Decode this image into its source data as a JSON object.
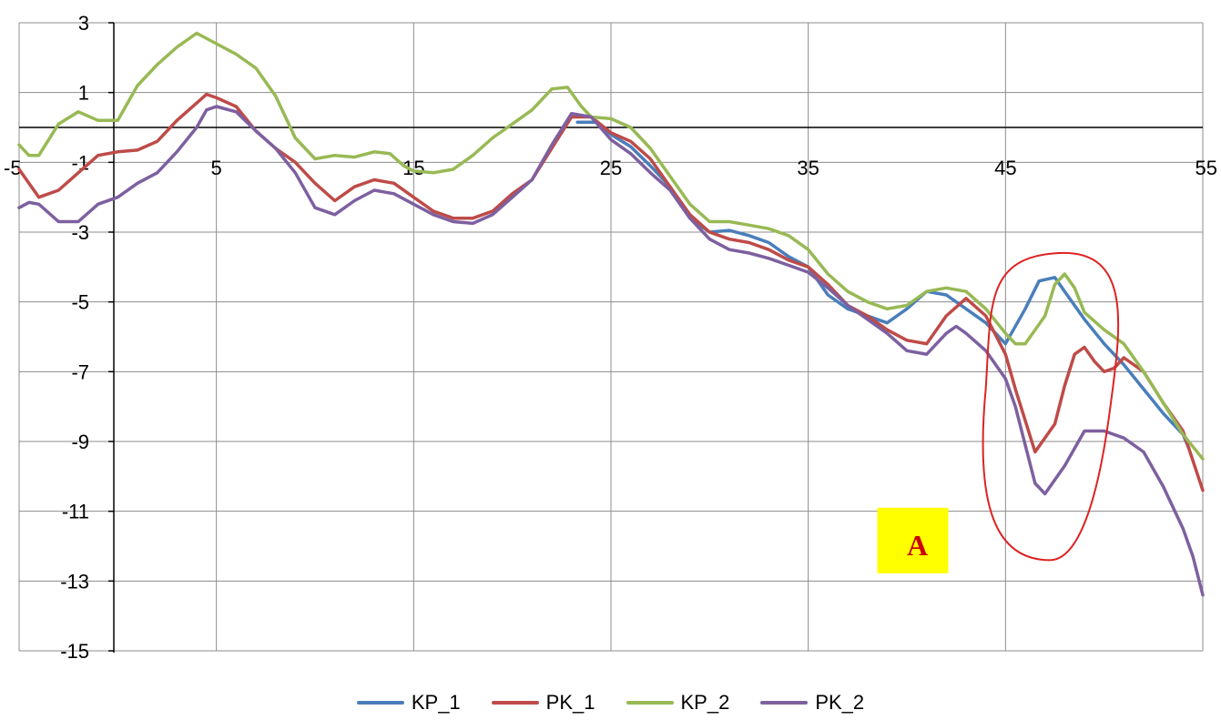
{
  "chart_data": {
    "type": "line",
    "title": "",
    "xlabel": "",
    "ylabel": "",
    "xlim": [
      -5,
      55
    ],
    "ylim": [
      -15,
      3
    ],
    "x_ticks": [
      -5,
      5,
      15,
      25,
      35,
      45,
      55
    ],
    "x_tick_labels": [
      "-5",
      "5",
      "15",
      "25",
      "35",
      "45",
      "55"
    ],
    "y_ticks": [
      3,
      1,
      -1,
      -3,
      -5,
      -7,
      -9,
      -11,
      -13,
      -15
    ],
    "y_tick_labels": [
      "3",
      "1",
      "-1",
      "-3",
      "-5",
      "-7",
      "-9",
      "-11",
      "-13",
      "-15"
    ],
    "x_axis_crosses_y": 0,
    "grid": true,
    "legend_position": "bottom",
    "series": [
      {
        "name": "KP_1",
        "color": "#4a7ebb",
        "points": [
          [
            23.3,
            0.15
          ],
          [
            24.3,
            0.15
          ],
          [
            25,
            -0.2
          ],
          [
            26,
            -0.55
          ],
          [
            27,
            -1.1
          ],
          [
            28,
            -1.7
          ],
          [
            29,
            -2.6
          ],
          [
            30,
            -3.0
          ],
          [
            31,
            -2.95
          ],
          [
            32,
            -3.1
          ],
          [
            33,
            -3.3
          ],
          [
            34,
            -3.7
          ],
          [
            35,
            -4.0
          ],
          [
            36,
            -4.8
          ],
          [
            37,
            -5.2
          ],
          [
            38,
            -5.4
          ],
          [
            39,
            -5.6
          ],
          [
            40,
            -5.2
          ],
          [
            41,
            -4.7
          ],
          [
            42,
            -4.8
          ],
          [
            43,
            -5.2
          ],
          [
            44,
            -5.6
          ],
          [
            45,
            -6.2
          ],
          [
            46,
            -5.2
          ],
          [
            46.7,
            -4.4
          ],
          [
            47.5,
            -4.3
          ],
          [
            48,
            -4.7
          ],
          [
            49,
            -5.5
          ],
          [
            50,
            -6.2
          ],
          [
            51,
            -6.8
          ],
          [
            52,
            -7.5
          ],
          [
            53,
            -8.2
          ],
          [
            54,
            -8.8
          ],
          [
            54.3,
            -9.2
          ]
        ]
      },
      {
        "name": "PK_1",
        "color": "#be4b48",
        "points": [
          [
            -5,
            -1.2
          ],
          [
            -4,
            -2.0
          ],
          [
            -3,
            -1.8
          ],
          [
            -2,
            -1.3
          ],
          [
            -1,
            -0.8
          ],
          [
            0,
            -0.7
          ],
          [
            1,
            -0.65
          ],
          [
            2,
            -0.4
          ],
          [
            3,
            0.2
          ],
          [
            4,
            0.7
          ],
          [
            4.5,
            0.95
          ],
          [
            5,
            0.85
          ],
          [
            6,
            0.6
          ],
          [
            7,
            -0.1
          ],
          [
            8,
            -0.6
          ],
          [
            9,
            -1.0
          ],
          [
            10,
            -1.6
          ],
          [
            11,
            -2.1
          ],
          [
            12,
            -1.7
          ],
          [
            13,
            -1.5
          ],
          [
            14,
            -1.6
          ],
          [
            15,
            -2.0
          ],
          [
            16,
            -2.4
          ],
          [
            17,
            -2.6
          ],
          [
            18,
            -2.6
          ],
          [
            19,
            -2.4
          ],
          [
            20,
            -1.9
          ],
          [
            21,
            -1.5
          ],
          [
            22,
            -0.6
          ],
          [
            23,
            0.3
          ],
          [
            24,
            0.3
          ],
          [
            25,
            -0.15
          ],
          [
            26,
            -0.4
          ],
          [
            27,
            -0.9
          ],
          [
            28,
            -1.7
          ],
          [
            29,
            -2.5
          ],
          [
            30,
            -3.0
          ],
          [
            31,
            -3.2
          ],
          [
            32,
            -3.3
          ],
          [
            33,
            -3.5
          ],
          [
            34,
            -3.8
          ],
          [
            35,
            -4.0
          ],
          [
            36,
            -4.5
          ],
          [
            37,
            -5.1
          ],
          [
            38,
            -5.4
          ],
          [
            39,
            -5.8
          ],
          [
            40,
            -6.1
          ],
          [
            41,
            -6.2
          ],
          [
            42,
            -5.4
          ],
          [
            43,
            -4.9
          ],
          [
            44,
            -5.4
          ],
          [
            45,
            -6.5
          ],
          [
            45.5,
            -7.5
          ],
          [
            46.5,
            -9.3
          ],
          [
            47.5,
            -8.5
          ],
          [
            48,
            -7.4
          ],
          [
            48.5,
            -6.5
          ],
          [
            49,
            -6.3
          ],
          [
            49.5,
            -6.7
          ],
          [
            50,
            -7.0
          ],
          [
            50.5,
            -6.9
          ],
          [
            51,
            -6.6
          ],
          [
            52,
            -7.0
          ],
          [
            53,
            -7.9
          ],
          [
            54,
            -8.7
          ],
          [
            55,
            -10.4
          ]
        ]
      },
      {
        "name": "KP_2",
        "color": "#98b954",
        "points": [
          [
            -5,
            -0.5
          ],
          [
            -4.5,
            -0.8
          ],
          [
            -4,
            -0.8
          ],
          [
            -3,
            0.1
          ],
          [
            -2,
            0.45
          ],
          [
            -1,
            0.2
          ],
          [
            0,
            0.2
          ],
          [
            1,
            1.2
          ],
          [
            2,
            1.8
          ],
          [
            3,
            2.3
          ],
          [
            4,
            2.7
          ],
          [
            5,
            2.4
          ],
          [
            6,
            2.1
          ],
          [
            7,
            1.7
          ],
          [
            8,
            0.9
          ],
          [
            9,
            -0.3
          ],
          [
            10,
            -0.9
          ],
          [
            11,
            -0.8
          ],
          [
            12,
            -0.85
          ],
          [
            13,
            -0.7
          ],
          [
            13.8,
            -0.75
          ],
          [
            14.5,
            -1.1
          ],
          [
            15,
            -1.25
          ],
          [
            16,
            -1.3
          ],
          [
            17,
            -1.2
          ],
          [
            18,
            -0.8
          ],
          [
            19,
            -0.3
          ],
          [
            20,
            0.1
          ],
          [
            21,
            0.5
          ],
          [
            22,
            1.1
          ],
          [
            22.8,
            1.15
          ],
          [
            23.5,
            0.6
          ],
          [
            24,
            0.3
          ],
          [
            25,
            0.25
          ],
          [
            26,
            0.0
          ],
          [
            27,
            -0.6
          ],
          [
            28,
            -1.4
          ],
          [
            29,
            -2.2
          ],
          [
            30,
            -2.7
          ],
          [
            31,
            -2.7
          ],
          [
            32,
            -2.8
          ],
          [
            33,
            -2.9
          ],
          [
            34,
            -3.1
          ],
          [
            35,
            -3.5
          ],
          [
            36,
            -4.2
          ],
          [
            37,
            -4.7
          ],
          [
            38,
            -5.0
          ],
          [
            39,
            -5.2
          ],
          [
            40,
            -5.1
          ],
          [
            41,
            -4.7
          ],
          [
            42,
            -4.6
          ],
          [
            43,
            -4.7
          ],
          [
            44,
            -5.2
          ],
          [
            45,
            -5.9
          ],
          [
            45.5,
            -6.2
          ],
          [
            46,
            -6.2
          ],
          [
            47,
            -5.4
          ],
          [
            47.5,
            -4.5
          ],
          [
            48,
            -4.2
          ],
          [
            48.5,
            -4.6
          ],
          [
            49,
            -5.3
          ],
          [
            50,
            -5.8
          ],
          [
            51,
            -6.2
          ],
          [
            52,
            -7.0
          ],
          [
            53,
            -7.9
          ],
          [
            54,
            -8.8
          ],
          [
            55,
            -9.5
          ]
        ]
      },
      {
        "name": "PK_2",
        "color": "#7d60a0",
        "points": [
          [
            -5,
            -2.3
          ],
          [
            -4.5,
            -2.15
          ],
          [
            -4,
            -2.2
          ],
          [
            -3,
            -2.7
          ],
          [
            -2,
            -2.7
          ],
          [
            -1,
            -2.2
          ],
          [
            0,
            -2.0
          ],
          [
            1,
            -1.6
          ],
          [
            2,
            -1.3
          ],
          [
            3,
            -0.7
          ],
          [
            4,
            0.0
          ],
          [
            4.5,
            0.5
          ],
          [
            5,
            0.6
          ],
          [
            6,
            0.45
          ],
          [
            7,
            -0.1
          ],
          [
            8,
            -0.6
          ],
          [
            9,
            -1.3
          ],
          [
            10,
            -2.3
          ],
          [
            11,
            -2.5
          ],
          [
            12,
            -2.1
          ],
          [
            13,
            -1.8
          ],
          [
            14,
            -1.9
          ],
          [
            15,
            -2.2
          ],
          [
            16,
            -2.5
          ],
          [
            17,
            -2.7
          ],
          [
            18,
            -2.75
          ],
          [
            19,
            -2.5
          ],
          [
            20,
            -2.0
          ],
          [
            21,
            -1.5
          ],
          [
            22,
            -0.5
          ],
          [
            23,
            0.4
          ],
          [
            24,
            0.3
          ],
          [
            25,
            -0.35
          ],
          [
            26,
            -0.75
          ],
          [
            27,
            -1.3
          ],
          [
            28,
            -1.8
          ],
          [
            29,
            -2.6
          ],
          [
            30,
            -3.2
          ],
          [
            31,
            -3.5
          ],
          [
            32,
            -3.6
          ],
          [
            33,
            -3.75
          ],
          [
            34,
            -3.95
          ],
          [
            35,
            -4.15
          ],
          [
            36,
            -4.6
          ],
          [
            37,
            -5.1
          ],
          [
            38,
            -5.5
          ],
          [
            39,
            -5.9
          ],
          [
            40,
            -6.4
          ],
          [
            41,
            -6.5
          ],
          [
            42,
            -5.9
          ],
          [
            42.5,
            -5.7
          ],
          [
            43,
            -5.9
          ],
          [
            44,
            -6.4
          ],
          [
            45,
            -7.2
          ],
          [
            45.5,
            -8.0
          ],
          [
            46.5,
            -10.2
          ],
          [
            47,
            -10.5
          ],
          [
            48,
            -9.7
          ],
          [
            49,
            -8.7
          ],
          [
            50,
            -8.7
          ],
          [
            51,
            -8.9
          ],
          [
            52,
            -9.3
          ],
          [
            53,
            -10.3
          ],
          [
            54,
            -11.5
          ],
          [
            54.5,
            -12.3
          ],
          [
            55,
            -13.4
          ]
        ]
      }
    ],
    "annotations": [
      {
        "text": "A",
        "type": "label-box",
        "box_color": "#ffff00",
        "text_color": "#cc0000"
      },
      {
        "type": "ellipse-highlight",
        "color": "#dd2222",
        "x_range": [
          44,
          50.5
        ],
        "y_range": [
          -12.4,
          -3.6
        ]
      }
    ]
  }
}
